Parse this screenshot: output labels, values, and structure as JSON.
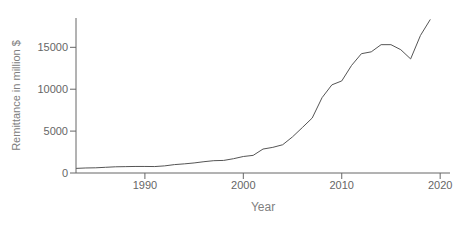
{
  "chart_data": {
    "type": "line",
    "xlabel": "Year",
    "ylabel": "Remittance in million $",
    "x": [
      1983,
      1984,
      1985,
      1986,
      1987,
      1988,
      1989,
      1990,
      1991,
      1992,
      1993,
      1994,
      1995,
      1996,
      1997,
      1998,
      1999,
      2000,
      2001,
      2002,
      2003,
      2004,
      2005,
      2006,
      2007,
      2008,
      2009,
      2010,
      2011,
      2012,
      2013,
      2014,
      2015,
      2016,
      2017,
      2018,
      2019
    ],
    "values": [
      550,
      600,
      620,
      680,
      740,
      760,
      780,
      780,
      770,
      850,
      1000,
      1090,
      1200,
      1350,
      1470,
      1500,
      1705,
      1968,
      2105,
      2858,
      3062,
      3372,
      4315,
      5428,
      6562,
      8990,
      10523,
      10987,
      12843,
      14239,
      14461,
      15317,
      15317,
      14716,
      13615,
      16419,
      18332
    ],
    "color": "#555555",
    "xlim": [
      1983,
      2021
    ],
    "ylim": [
      0,
      18500
    ],
    "xticks": [
      1990,
      2000,
      2010,
      2020
    ],
    "yticks": [
      0,
      5000,
      10000,
      15000
    ],
    "grid": false
  }
}
